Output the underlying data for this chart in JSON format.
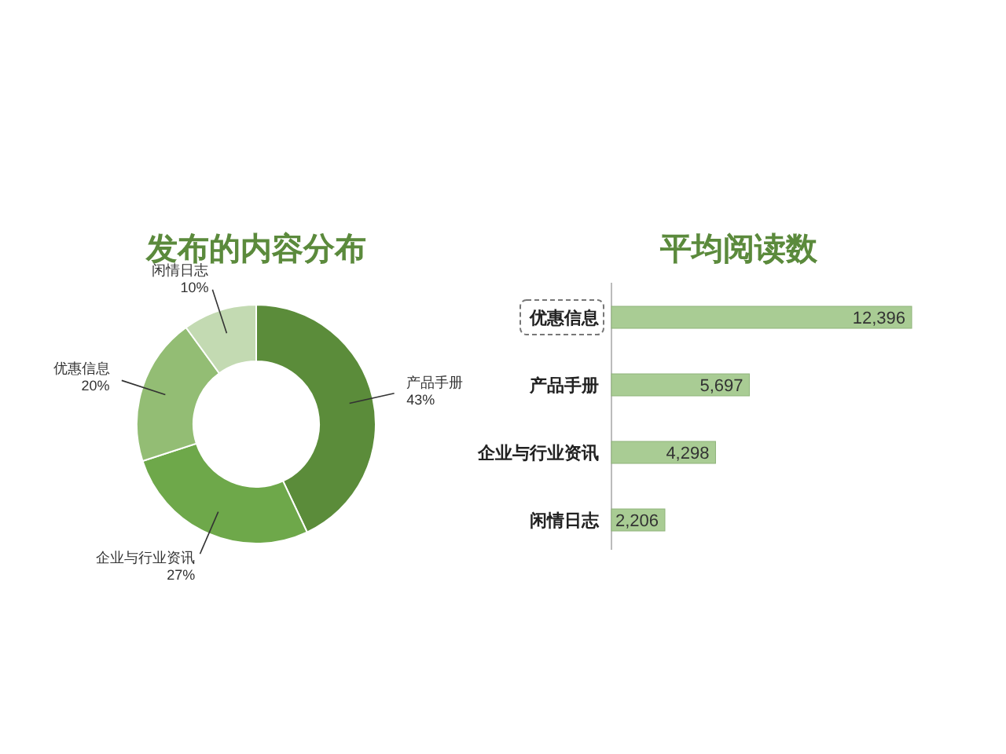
{
  "chart_data": [
    {
      "type": "donut",
      "title": "发布的内容分布",
      "categories": [
        "产品手册",
        "企业与行业资讯",
        "优惠信息",
        "闲情日志"
      ],
      "values": [
        43,
        27,
        20,
        10
      ],
      "colors": [
        "#5b8c3a",
        "#6ea84a",
        "#93bd74",
        "#c3dab2"
      ],
      "value_labels": [
        "43%",
        "27%",
        "20%",
        "10%"
      ]
    },
    {
      "type": "bar",
      "orientation": "horizontal",
      "title": "平均阅读数",
      "categories": [
        "优惠信息",
        "产品手册",
        "企业与行业资讯",
        "闲情日志"
      ],
      "values": [
        12396,
        5697,
        4298,
        2206
      ],
      "color": "#a9cc94",
      "value_labels": [
        "12,396",
        "5,697",
        "4,298",
        "2,206"
      ]
    }
  ]
}
